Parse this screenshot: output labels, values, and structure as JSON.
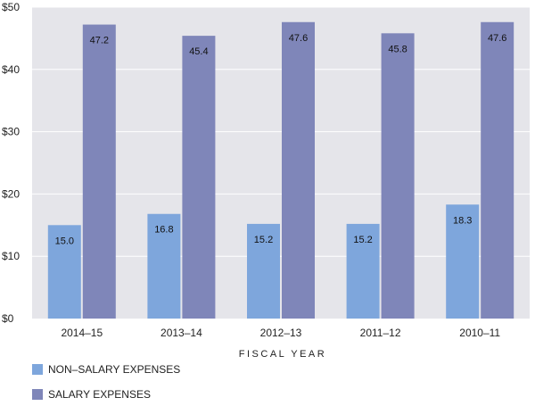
{
  "chart_data": {
    "type": "bar",
    "categories": [
      "2014–15",
      "2013–14",
      "2012–13",
      "2011–12",
      "2010–11"
    ],
    "series": [
      {
        "name": "NON–SALARY EXPENSES",
        "values": [
          15.0,
          16.8,
          15.2,
          15.2,
          18.3
        ],
        "color": "#7ea6dc"
      },
      {
        "name": "SALARY EXPENSES",
        "values": [
          47.2,
          45.4,
          47.6,
          45.8,
          47.6
        ],
        "color": "#7f86b9"
      }
    ],
    "data_labels": [
      [
        "15.0",
        "16.8",
        "15.2",
        "15.2",
        "18.3"
      ],
      [
        "47.2",
        "45.4",
        "47.6",
        "45.8",
        "47.6"
      ]
    ],
    "yticks": [
      "$0",
      "$10",
      "$20",
      "$30",
      "$40",
      "$50"
    ],
    "ytick_values": [
      0,
      10,
      20,
      30,
      40,
      50
    ],
    "xlabel": "FISCAL YEAR",
    "ylabel": "",
    "ylim": [
      0,
      50
    ],
    "grid": true,
    "plot_background": "#e5e5ea",
    "grid_color": "#ffffff",
    "legend_position": "bottom-left"
  }
}
